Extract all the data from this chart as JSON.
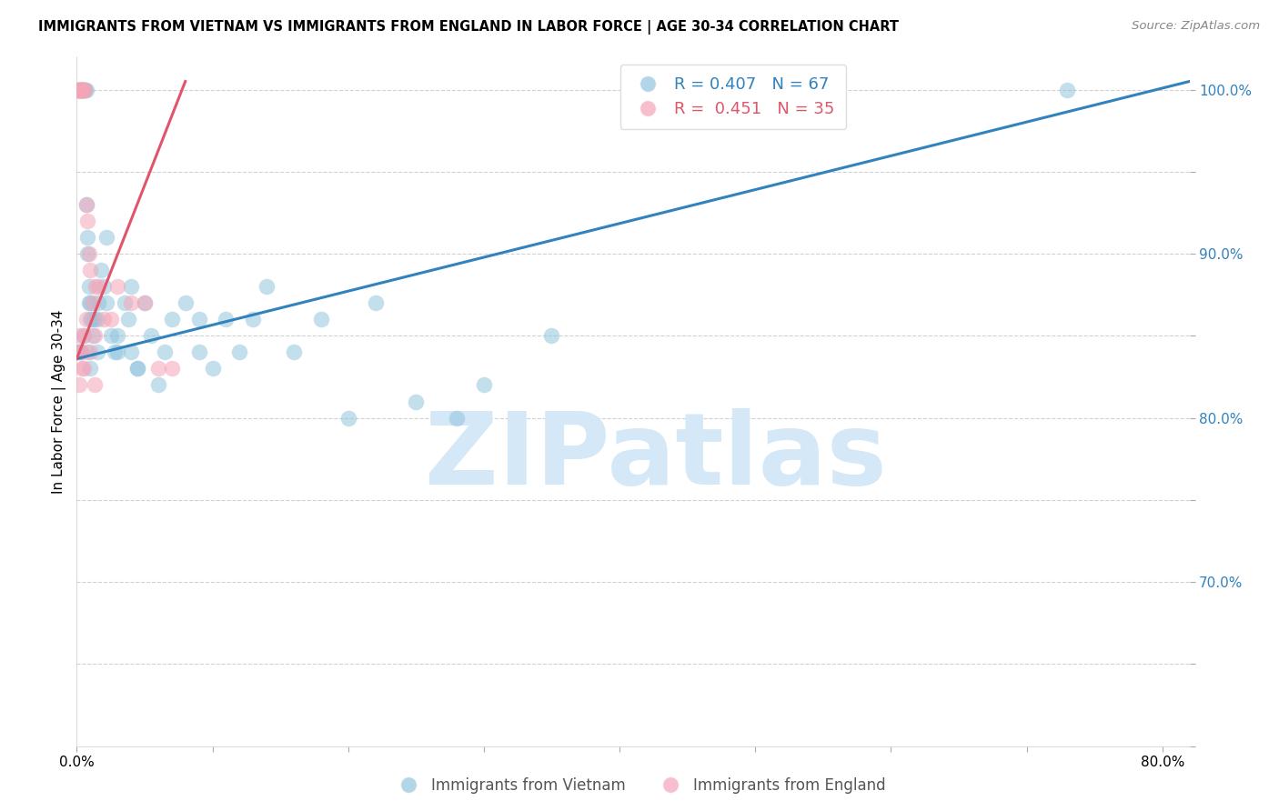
{
  "title": "IMMIGRANTS FROM VIETNAM VS IMMIGRANTS FROM ENGLAND IN LABOR FORCE | AGE 30-34 CORRELATION CHART",
  "source": "Source: ZipAtlas.com",
  "ylabel": "In Labor Force | Age 30-34",
  "legend_r1": "R = 0.407",
  "legend_n1": "N = 67",
  "legend_r2": "R = 0.451",
  "legend_n2": "N = 35",
  "legend_label1": "Immigrants from Vietnam",
  "legend_label2": "Immigrants from England",
  "blue_color": "#92c5de",
  "pink_color": "#f4a5b8",
  "blue_line_color": "#3182bd",
  "pink_line_color": "#e0556a",
  "watermark": "ZIPatlas",
  "watermark_color": "#d4e8f7",
  "xlim": [
    0.0,
    0.82
  ],
  "ylim": [
    0.6,
    1.02
  ],
  "blue_trend_x": [
    0.0,
    0.82
  ],
  "blue_trend_y": [
    0.836,
    1.005
  ],
  "pink_trend_x": [
    0.0,
    0.08
  ],
  "pink_trend_y": [
    0.836,
    1.005
  ],
  "vietnam_x": [
    0.001,
    0.002,
    0.002,
    0.003,
    0.003,
    0.004,
    0.004,
    0.005,
    0.005,
    0.006,
    0.006,
    0.007,
    0.007,
    0.008,
    0.008,
    0.009,
    0.009,
    0.01,
    0.01,
    0.011,
    0.012,
    0.013,
    0.015,
    0.016,
    0.018,
    0.02,
    0.022,
    0.025,
    0.028,
    0.03,
    0.035,
    0.038,
    0.04,
    0.045,
    0.05,
    0.055,
    0.06,
    0.065,
    0.07,
    0.08,
    0.09,
    0.1,
    0.11,
    0.12,
    0.13,
    0.14,
    0.16,
    0.18,
    0.2,
    0.22,
    0.25,
    0.28,
    0.3,
    0.35,
    0.73,
    0.001,
    0.002,
    0.003,
    0.005,
    0.008,
    0.01,
    0.015,
    0.022,
    0.03,
    0.04,
    0.045,
    0.09
  ],
  "vietnam_y": [
    1.0,
    1.0,
    1.0,
    1.0,
    1.0,
    1.0,
    1.0,
    1.0,
    1.0,
    1.0,
    1.0,
    1.0,
    0.93,
    0.91,
    0.9,
    0.88,
    0.87,
    0.87,
    0.86,
    0.86,
    0.85,
    0.86,
    0.86,
    0.87,
    0.89,
    0.88,
    0.91,
    0.85,
    0.84,
    0.85,
    0.87,
    0.86,
    0.88,
    0.83,
    0.87,
    0.85,
    0.82,
    0.84,
    0.86,
    0.87,
    0.84,
    0.83,
    0.86,
    0.84,
    0.86,
    0.88,
    0.84,
    0.86,
    0.8,
    0.87,
    0.81,
    0.8,
    0.82,
    0.85,
    1.0,
    0.84,
    0.84,
    0.84,
    0.85,
    0.84,
    0.83,
    0.84,
    0.87,
    0.84,
    0.84,
    0.83,
    0.86
  ],
  "england_x": [
    0.001,
    0.001,
    0.002,
    0.002,
    0.003,
    0.003,
    0.004,
    0.004,
    0.005,
    0.006,
    0.007,
    0.008,
    0.009,
    0.01,
    0.012,
    0.014,
    0.016,
    0.02,
    0.025,
    0.03,
    0.04,
    0.05,
    0.06,
    0.07,
    0.002,
    0.003,
    0.005,
    0.007,
    0.01,
    0.013,
    0.002,
    0.003,
    0.004,
    0.005,
    0.013
  ],
  "england_y": [
    1.0,
    1.0,
    1.0,
    1.0,
    1.0,
    1.0,
    1.0,
    1.0,
    1.0,
    1.0,
    0.93,
    0.92,
    0.9,
    0.89,
    0.87,
    0.88,
    0.88,
    0.86,
    0.86,
    0.88,
    0.87,
    0.87,
    0.83,
    0.83,
    0.85,
    0.84,
    0.85,
    0.86,
    0.84,
    0.85,
    0.82,
    0.84,
    0.83,
    0.83,
    0.82
  ]
}
